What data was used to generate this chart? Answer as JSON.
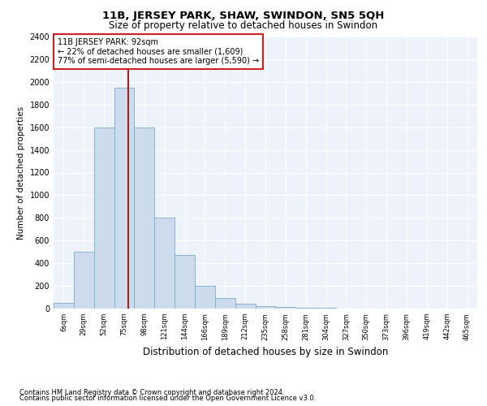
{
  "title1": "11B, JERSEY PARK, SHAW, SWINDON, SN5 5QH",
  "title2": "Size of property relative to detached houses in Swindon",
  "xlabel": "Distribution of detached houses by size in Swindon",
  "ylabel": "Number of detached properties",
  "footnote1": "Contains HM Land Registry data © Crown copyright and database right 2024.",
  "footnote2": "Contains public sector information licensed under the Open Government Licence v3.0.",
  "annotation_title": "11B JERSEY PARK: 92sqm",
  "annotation_line1": "← 22% of detached houses are smaller (1,609)",
  "annotation_line2": "77% of semi-detached houses are larger (5,590) →",
  "bar_color": "#ccdcec",
  "bar_edge_color": "#7aabcc",
  "vline_color": "#aa2020",
  "vline_x_index": 3.7,
  "background_color": "#eef2fa",
  "grid_color": "#ffffff",
  "categories": [
    "6sqm",
    "29sqm",
    "52sqm",
    "75sqm",
    "98sqm",
    "121sqm",
    "144sqm",
    "166sqm",
    "189sqm",
    "212sqm",
    "235sqm",
    "258sqm",
    "281sqm",
    "304sqm",
    "327sqm",
    "350sqm",
    "373sqm",
    "396sqm",
    "419sqm",
    "442sqm",
    "465sqm"
  ],
  "values": [
    50,
    500,
    1600,
    1950,
    1600,
    800,
    475,
    200,
    90,
    40,
    25,
    15,
    10,
    5,
    3,
    2,
    1,
    1,
    0,
    0,
    0
  ],
  "ylim": [
    0,
    2400
  ],
  "yticks": [
    0,
    200,
    400,
    600,
    800,
    1000,
    1200,
    1400,
    1600,
    1800,
    2000,
    2200,
    2400
  ]
}
